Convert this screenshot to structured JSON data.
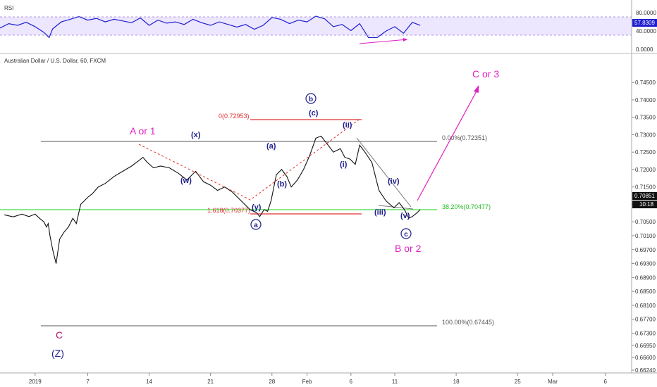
{
  "rsi_panel": {
    "title": "RSI",
    "value_label": "57.8309",
    "scale": [
      "80.0000",
      "40.0000",
      "0.0000"
    ],
    "band": [
      30,
      70
    ]
  },
  "price_panel": {
    "title": "Australian Dollar / U.S. Dollar, 60, FXCM",
    "last_price_label": "0.70851",
    "countdown_label": "10:18"
  },
  "chart_data": {
    "type": "line",
    "title": "Australian Dollar / U.S. Dollar, 60, FXCM",
    "ylim": [
      0.6624,
      0.7505
    ],
    "y_ticks": [
      "0.74500",
      "0.74000",
      "0.73500",
      "0.73000",
      "0.72500",
      "0.72000",
      "0.71500",
      "0.71000",
      "0.70500",
      "0.70100",
      "0.69700",
      "0.69300",
      "0.68900",
      "0.68500",
      "0.68100",
      "0.67700",
      "0.67300",
      "0.66950",
      "0.66600",
      "0.66240"
    ],
    "x_ticks": [
      "2019",
      "7",
      "14",
      "21",
      "28",
      "Feb",
      "6",
      "11",
      "18",
      "25",
      "Mar",
      "6"
    ],
    "x_tick_days": [
      1,
      7,
      14,
      21,
      28,
      32,
      37,
      42,
      49,
      56,
      60,
      66
    ],
    "x_range_days": [
      -3,
      69
    ],
    "series": [
      {
        "x": [
          -2.5,
          -1.5,
          -0.5,
          0.3,
          1.0,
          1.5,
          2.0,
          2.3,
          2.5,
          2.7,
          3.0,
          3.4,
          3.8,
          4.3,
          4.8,
          5.3,
          5.7,
          6.2,
          6.6,
          7.0,
          7.5,
          8.2,
          9.0,
          10.0,
          11.0,
          12.0,
          12.8,
          13.3,
          13.8,
          14.5,
          15.3,
          16.3,
          17.3,
          18.3,
          19.3,
          20.2,
          21.0,
          21.8,
          22.6,
          23.5,
          24.5,
          25.5,
          26.3,
          26.6,
          27.1,
          27.5,
          27.9,
          28.5,
          29.1,
          29.7,
          30.2,
          30.9,
          31.6,
          32.3,
          33.0,
          33.6,
          34.4,
          35.0,
          35.8,
          36.3,
          36.9,
          37.5,
          38.0,
          38.6,
          39.4,
          40.2,
          41.0,
          41.9,
          42.5,
          43.1,
          43.6,
          44.0,
          44.5,
          44.9
        ],
        "y": [
          0.707,
          0.7064,
          0.7072,
          0.7065,
          0.7072,
          0.706,
          0.705,
          0.7035,
          0.7045,
          0.701,
          0.697,
          0.693,
          0.7,
          0.702,
          0.7035,
          0.706,
          0.7045,
          0.71,
          0.711,
          0.712,
          0.713,
          0.715,
          0.716,
          0.718,
          0.7195,
          0.721,
          0.7225,
          0.7235,
          0.722,
          0.7205,
          0.721,
          0.7205,
          0.719,
          0.717,
          0.7195,
          0.7165,
          0.7155,
          0.714,
          0.715,
          0.7135,
          0.711,
          0.7085,
          0.7075,
          0.7065,
          0.7085,
          0.708,
          0.711,
          0.7185,
          0.72,
          0.718,
          0.715,
          0.717,
          0.72,
          0.724,
          0.729,
          0.7296,
          0.727,
          0.725,
          0.726,
          0.7235,
          0.723,
          0.7215,
          0.727,
          0.725,
          0.722,
          0.714,
          0.711,
          0.709,
          0.7105,
          0.7085,
          0.706,
          0.7065,
          0.7075,
          0.7085
        ]
      }
    ],
    "rsi_series": {
      "x": [
        -3,
        -2,
        -1,
        0,
        1,
        2,
        2.6,
        3,
        3.5,
        4,
        5,
        6,
        7,
        8,
        9,
        10,
        11,
        12,
        13,
        14,
        15,
        16,
        17,
        18,
        19,
        20,
        21,
        22,
        23,
        24,
        25,
        26,
        27,
        28,
        29,
        30,
        31,
        32,
        33,
        34,
        35,
        36,
        37,
        38,
        39,
        40,
        41,
        42,
        43,
        44,
        44.9
      ],
      "y": [
        52,
        62,
        58,
        65,
        55,
        42,
        30,
        50,
        58,
        66,
        72,
        78,
        70,
        74,
        66,
        72,
        68,
        64,
        75,
        58,
        70,
        63,
        66,
        60,
        72,
        64,
        58,
        66,
        60,
        54,
        60,
        49,
        58,
        76,
        72,
        62,
        70,
        66,
        79,
        73,
        55,
        60,
        46,
        62,
        30,
        30,
        45,
        55,
        40,
        65,
        57.83
      ]
    },
    "annotations": {
      "waves_small": [
        "(x)",
        "(w)",
        "(a)",
        "(b)",
        "(y)",
        "(c)",
        "(ii)",
        "(i)",
        "(iv)",
        "(iii)",
        "(v)"
      ],
      "waves_circled": [
        "b",
        "a",
        "c"
      ],
      "waves_large": [
        "A or 1",
        "C or 3",
        "B or 2",
        "C",
        "(Z)"
      ],
      "fib_labels": [
        "0.00%(0.72351)",
        "38.20%(0.70477)",
        "100.00%(0.67445)",
        "0(0.72953)",
        "1.618(0.70377)"
      ]
    }
  },
  "colors": {
    "price": "#111111",
    "rsi_line": "#1f1fd0",
    "rsi_band": "#ece6ff",
    "magenta": "#e020c0",
    "fib_gray": "#555555",
    "fib_green": "#44dd44",
    "red": "#e03030",
    "navy": "#1c1c8c"
  }
}
